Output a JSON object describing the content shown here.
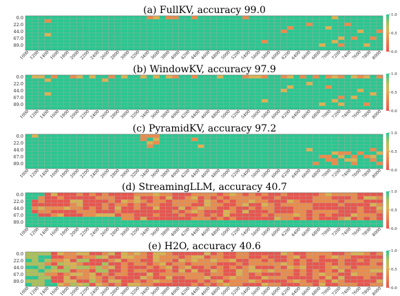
{
  "chart_data": [
    {
      "type": "heatmap",
      "title": "(a) FullKV, accuracy 99.0",
      "x_tick_labels": [
        "1000",
        "1200",
        "1400",
        "1600",
        "1800",
        "2000",
        "2200",
        "2400",
        "2600",
        "2800",
        "3000",
        "3200",
        "3400",
        "3600",
        "3800",
        "4000",
        "4200",
        "4400",
        "4600",
        "4800",
        "5000",
        "5200",
        "5400",
        "5600",
        "5800",
        "6000",
        "6200",
        "6400",
        "6600",
        "6800",
        "7000",
        "7200",
        "7400",
        "7600",
        "7800",
        "8000"
      ],
      "y_tick_labels": [
        "0.0",
        "22.0",
        "44.0",
        "67.0",
        "89.0"
      ],
      "colorbar_ticks": [
        "0.0",
        "0.5",
        "1.0"
      ],
      "colorbar_range": [
        0,
        1
      ],
      "rows": 10,
      "cols": 56,
      "colors": [
        "#e8554e",
        "#e98c4c",
        "#d9b352",
        "#a9c25a",
        "#28c891"
      ],
      "pattern": "mostly_green",
      "low_cells": [
        [
          0,
          19
        ],
        [
          0,
          20
        ],
        [
          0,
          22
        ],
        [
          0,
          23
        ],
        [
          0,
          26
        ],
        [
          0,
          34
        ],
        [
          0,
          48
        ],
        [
          1,
          3
        ],
        [
          2,
          44
        ],
        [
          2,
          50
        ],
        [
          3,
          41
        ],
        [
          3,
          47
        ],
        [
          4,
          40
        ],
        [
          4,
          52
        ],
        [
          4,
          55
        ],
        [
          5,
          3
        ],
        [
          6,
          49
        ],
        [
          6,
          51
        ],
        [
          6,
          54
        ],
        [
          7,
          37
        ],
        [
          7,
          48
        ],
        [
          8,
          46
        ],
        [
          8,
          49
        ],
        [
          8,
          53
        ]
      ],
      "high_cells": []
    },
    {
      "type": "heatmap",
      "title": "(b) WindowKV, accuracy 97.9",
      "x_tick_labels": [
        "1000",
        "1200",
        "1400",
        "1600",
        "1800",
        "2000",
        "2200",
        "2400",
        "2600",
        "2800",
        "3000",
        "3200",
        "3400",
        "3600",
        "3800",
        "4000",
        "4200",
        "4400",
        "4600",
        "4800",
        "5000",
        "5200",
        "5400",
        "5600",
        "5800",
        "6000",
        "6200",
        "6400",
        "6600",
        "6800",
        "7000",
        "7200",
        "7400",
        "7600",
        "7800",
        "8000"
      ],
      "y_tick_labels": [
        "0.0",
        "22.0",
        "44.0",
        "67.0",
        "89.0"
      ],
      "colorbar_ticks": [
        "0.0",
        "0.5",
        "1.0"
      ],
      "colorbar_range": [
        0,
        1
      ],
      "rows": 10,
      "cols": 56,
      "colors": [
        "#e8554e",
        "#e98c4c",
        "#d9b352",
        "#a9c25a",
        "#28c891"
      ],
      "pattern": "mostly_green",
      "low_cells": [
        [
          0,
          1
        ],
        [
          0,
          2
        ],
        [
          0,
          4
        ],
        [
          0,
          7
        ],
        [
          0,
          8
        ],
        [
          0,
          10
        ],
        [
          0,
          13
        ],
        [
          0,
          15
        ],
        [
          0,
          18
        ],
        [
          0,
          20
        ],
        [
          0,
          22
        ],
        [
          0,
          23
        ],
        [
          0,
          26
        ],
        [
          0,
          30
        ],
        [
          0,
          34
        ],
        [
          0,
          35
        ],
        [
          0,
          36
        ],
        [
          0,
          37
        ],
        [
          0,
          40
        ],
        [
          0,
          41
        ],
        [
          0,
          43
        ],
        [
          0,
          45
        ],
        [
          0,
          47
        ],
        [
          0,
          48
        ],
        [
          0,
          49
        ],
        [
          0,
          51
        ],
        [
          0,
          52
        ],
        [
          0,
          53
        ],
        [
          0,
          55
        ],
        [
          1,
          3
        ],
        [
          1,
          12
        ],
        [
          2,
          44
        ],
        [
          3,
          41
        ],
        [
          3,
          47
        ],
        [
          4,
          40
        ],
        [
          4,
          52
        ],
        [
          5,
          3
        ],
        [
          5,
          54
        ],
        [
          6,
          49
        ],
        [
          6,
          51
        ],
        [
          7,
          37
        ],
        [
          7,
          48
        ],
        [
          8,
          46
        ],
        [
          8,
          49
        ],
        [
          8,
          53
        ]
      ],
      "high_cells": []
    },
    {
      "type": "heatmap",
      "title": "(c) PyramidKV, accuracy 97.2",
      "x_tick_labels": [
        "1000",
        "1200",
        "1400",
        "1600",
        "1800",
        "2000",
        "2200",
        "2400",
        "2600",
        "2800",
        "3000",
        "3200",
        "3400",
        "3600",
        "3800",
        "4000",
        "4200",
        "4400",
        "4600",
        "4800",
        "5000",
        "5200",
        "5400",
        "5600",
        "5800",
        "6000",
        "6200",
        "6400",
        "6600",
        "6800",
        "7000",
        "7200",
        "7400",
        "7600",
        "7800",
        "8000"
      ],
      "y_tick_labels": [
        "0.0",
        "22.0",
        "44.0",
        "67.0",
        "89.0"
      ],
      "colorbar_ticks": [
        "0.0",
        "0.5",
        "1.0"
      ],
      "colorbar_range": [
        0,
        1
      ],
      "rows": 10,
      "cols": 56,
      "colors": [
        "#e8554e",
        "#e98c4c",
        "#d9b352",
        "#a9c25a",
        "#28c891"
      ],
      "pattern": "mostly_green",
      "low_cells": [
        [
          0,
          1
        ],
        [
          0,
          18
        ],
        [
          0,
          19
        ],
        [
          0,
          20
        ],
        [
          1,
          18
        ],
        [
          1,
          20
        ],
        [
          1,
          26
        ],
        [
          2,
          19
        ],
        [
          2,
          20
        ],
        [
          3,
          19
        ],
        [
          3,
          27
        ],
        [
          4,
          44
        ],
        [
          4,
          54
        ],
        [
          5,
          48
        ],
        [
          5,
          49
        ],
        [
          5,
          50
        ],
        [
          5,
          52
        ],
        [
          5,
          55
        ],
        [
          6,
          46
        ],
        [
          6,
          47
        ],
        [
          6,
          49
        ],
        [
          6,
          51
        ],
        [
          6,
          53
        ],
        [
          6,
          54
        ],
        [
          7,
          47
        ],
        [
          7,
          48
        ],
        [
          7,
          50
        ],
        [
          7,
          51
        ],
        [
          7,
          54
        ],
        [
          8,
          45
        ],
        [
          8,
          48
        ],
        [
          8,
          51
        ],
        [
          8,
          55
        ]
      ],
      "high_cells": []
    },
    {
      "type": "heatmap",
      "title": "(d) StreamingLLM, accuracy 40.7",
      "x_tick_labels": [
        "1000",
        "1200",
        "1400",
        "1600",
        "1800",
        "2000",
        "2200",
        "2400",
        "2600",
        "2800",
        "3000",
        "3200",
        "3400",
        "3600",
        "3800",
        "4000",
        "4200",
        "4400",
        "4600",
        "4800",
        "5000",
        "5200",
        "5400",
        "5600",
        "5800",
        "6000",
        "6200",
        "6400",
        "6600",
        "6800",
        "7000",
        "7200",
        "7400",
        "7600",
        "7800",
        "8000"
      ],
      "y_tick_labels": [
        "0.0",
        "22.0",
        "44.0",
        "67.0",
        "89.0"
      ],
      "colorbar_ticks": [
        "0.0",
        "0.5",
        "1.0"
      ],
      "colorbar_range": [
        0,
        1
      ],
      "rows": 10,
      "cols": 56,
      "colors": [
        "#e8554e",
        "#e98c4c",
        "#d9b352",
        "#a9c25a",
        "#28c891"
      ],
      "pattern": "mostly_red",
      "low_cells": [],
      "high_cells": [
        [
          0,
          0
        ],
        [
          0,
          1
        ],
        [
          0,
          2
        ],
        [
          1,
          0
        ],
        [
          1,
          1
        ],
        [
          2,
          0
        ],
        [
          3,
          0
        ],
        [
          4,
          0
        ],
        [
          5,
          0
        ],
        [
          6,
          0
        ],
        [
          6,
          1
        ],
        [
          7,
          0
        ],
        [
          7,
          1
        ],
        [
          7,
          2
        ],
        [
          7,
          3
        ],
        [
          7,
          4
        ],
        [
          7,
          5
        ],
        [
          7,
          6
        ],
        [
          7,
          7
        ],
        [
          7,
          8
        ],
        [
          7,
          9
        ],
        [
          7,
          10
        ],
        [
          7,
          11
        ],
        [
          7,
          12
        ],
        [
          7,
          13
        ],
        [
          7,
          14
        ],
        [
          8,
          0
        ],
        [
          8,
          1
        ],
        [
          8,
          2
        ],
        [
          8,
          3
        ],
        [
          8,
          4
        ],
        [
          8,
          5
        ],
        [
          8,
          6
        ],
        [
          8,
          7
        ],
        [
          8,
          8
        ],
        [
          8,
          9
        ],
        [
          8,
          10
        ],
        [
          8,
          11
        ],
        [
          8,
          12
        ],
        [
          8,
          13
        ],
        [
          8,
          14
        ],
        [
          8,
          15
        ],
        [
          8,
          16
        ],
        [
          8,
          17
        ],
        [
          8,
          18
        ],
        [
          8,
          19
        ],
        [
          8,
          20
        ],
        [
          8,
          21
        ],
        [
          8,
          22
        ],
        [
          8,
          23
        ],
        [
          8,
          24
        ],
        [
          8,
          25
        ],
        [
          8,
          26
        ],
        [
          8,
          27
        ],
        [
          8,
          28
        ],
        [
          8,
          29
        ],
        [
          8,
          30
        ],
        [
          8,
          31
        ],
        [
          8,
          32
        ],
        [
          8,
          33
        ],
        [
          8,
          34
        ],
        [
          8,
          35
        ],
        [
          8,
          36
        ],
        [
          8,
          37
        ],
        [
          8,
          38
        ],
        [
          8,
          39
        ],
        [
          8,
          40
        ],
        [
          8,
          41
        ],
        [
          8,
          42
        ],
        [
          8,
          43
        ],
        [
          8,
          44
        ],
        [
          8,
          45
        ],
        [
          8,
          46
        ],
        [
          8,
          47
        ],
        [
          8,
          48
        ],
        [
          8,
          49
        ],
        [
          8,
          50
        ],
        [
          8,
          51
        ],
        [
          8,
          52
        ],
        [
          8,
          53
        ],
        [
          8,
          54
        ],
        [
          8,
          55
        ],
        [
          9,
          0
        ],
        [
          9,
          1
        ],
        [
          9,
          2
        ],
        [
          9,
          3
        ],
        [
          9,
          4
        ],
        [
          9,
          5
        ],
        [
          9,
          6
        ],
        [
          9,
          7
        ],
        [
          9,
          8
        ],
        [
          9,
          9
        ],
        [
          9,
          10
        ],
        [
          9,
          11
        ],
        [
          9,
          12
        ],
        [
          9,
          13
        ],
        [
          9,
          14
        ],
        [
          9,
          15
        ],
        [
          9,
          16
        ],
        [
          9,
          17
        ],
        [
          9,
          18
        ],
        [
          9,
          19
        ],
        [
          9,
          20
        ],
        [
          9,
          21
        ],
        [
          9,
          22
        ],
        [
          9,
          23
        ],
        [
          9,
          24
        ],
        [
          9,
          25
        ],
        [
          9,
          26
        ],
        [
          9,
          27
        ],
        [
          9,
          28
        ],
        [
          9,
          29
        ],
        [
          9,
          30
        ],
        [
          9,
          31
        ],
        [
          9,
          32
        ],
        [
          9,
          33
        ],
        [
          9,
          34
        ],
        [
          9,
          35
        ],
        [
          9,
          36
        ],
        [
          9,
          37
        ],
        [
          9,
          38
        ],
        [
          9,
          39
        ],
        [
          9,
          40
        ],
        [
          9,
          41
        ],
        [
          9,
          42
        ],
        [
          9,
          43
        ],
        [
          9,
          44
        ],
        [
          9,
          45
        ],
        [
          9,
          46
        ],
        [
          9,
          47
        ],
        [
          9,
          48
        ],
        [
          9,
          49
        ],
        [
          9,
          50
        ],
        [
          9,
          51
        ],
        [
          9,
          52
        ],
        [
          9,
          53
        ],
        [
          9,
          54
        ],
        [
          9,
          55
        ]
      ]
    },
    {
      "type": "heatmap",
      "title": "(e) H2O, accuracy 40.6",
      "x_tick_labels": [
        "1000",
        "1200",
        "1400",
        "1600",
        "1800",
        "2000",
        "2200",
        "2400",
        "2600",
        "2800",
        "3000",
        "3200",
        "3400",
        "3600",
        "3800",
        "4000",
        "4200",
        "4400",
        "4600",
        "4800",
        "5000",
        "5200",
        "5400",
        "5600",
        "5800",
        "6000",
        "6200",
        "6400",
        "6600",
        "6800",
        "7000",
        "7200",
        "7400",
        "7600",
        "7800",
        "8000"
      ],
      "y_tick_labels": [
        "0.0",
        "22.0",
        "44.0",
        "67.0",
        "89.0"
      ],
      "colorbar_ticks": [
        "0.0",
        "0.5",
        "1.0"
      ],
      "colorbar_range": [
        0,
        1
      ],
      "rows": 10,
      "cols": 56,
      "colors": [
        "#e8554e",
        "#e98c4c",
        "#d9b352",
        "#a9c25a",
        "#28c891"
      ],
      "pattern": "mostly_red_left_green",
      "low_cells": [],
      "high_cells": [
        [
          0,
          0
        ],
        [
          0,
          1
        ],
        [
          0,
          2
        ],
        [
          1,
          0
        ],
        [
          1,
          1
        ],
        [
          1,
          2
        ],
        [
          2,
          0
        ],
        [
          2,
          1
        ],
        [
          2,
          2
        ],
        [
          3,
          0
        ],
        [
          3,
          1
        ],
        [
          3,
          2
        ],
        [
          4,
          0
        ],
        [
          4,
          1
        ],
        [
          4,
          2
        ],
        [
          5,
          0
        ],
        [
          5,
          1
        ],
        [
          5,
          2
        ],
        [
          6,
          0
        ],
        [
          6,
          1
        ],
        [
          6,
          2
        ],
        [
          7,
          0
        ],
        [
          7,
          1
        ],
        [
          7,
          2
        ],
        [
          8,
          0
        ],
        [
          8,
          1
        ],
        [
          8,
          2
        ],
        [
          9,
          0
        ],
        [
          9,
          1
        ],
        [
          9,
          2
        ],
        [
          0,
          3
        ],
        [
          1,
          3
        ],
        [
          2,
          3
        ],
        [
          4,
          3
        ],
        [
          5,
          3
        ],
        [
          7,
          3
        ],
        [
          8,
          3
        ],
        [
          9,
          3
        ],
        [
          9,
          4
        ]
      ]
    }
  ]
}
